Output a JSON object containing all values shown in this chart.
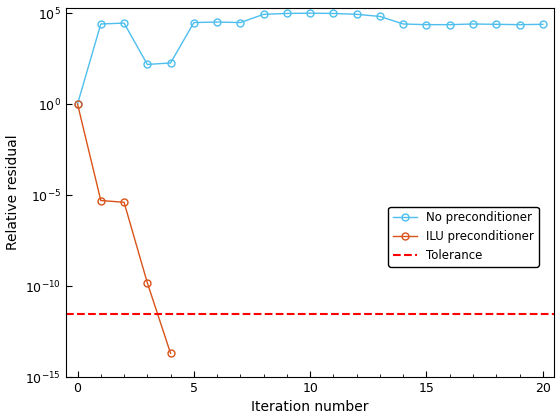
{
  "title": "",
  "xlabel": "Iteration number",
  "ylabel": "Relative residual",
  "xlim": [
    -0.5,
    20.5
  ],
  "ylim": [
    1e-15,
    200000.0
  ],
  "tolerance": 3e-12,
  "blue_x": [
    0,
    1,
    2,
    3,
    4,
    5,
    6,
    7,
    8,
    9,
    10,
    11,
    12,
    13,
    14,
    15,
    16,
    17,
    18,
    19,
    20
  ],
  "blue_y": [
    1.0,
    25000.0,
    28000.0,
    150.0,
    180.0,
    30000.0,
    32000.0,
    30000.0,
    85000.0,
    95000.0,
    98000.0,
    95000.0,
    85000.0,
    65000.0,
    25000.0,
    23000.0,
    23000.0,
    25000.0,
    24000.0,
    23000.0,
    24000.0
  ],
  "orange_x": [
    0,
    1,
    2,
    3,
    4
  ],
  "orange_y": [
    1.0,
    5e-06,
    4e-06,
    1.5e-10,
    2e-14
  ],
  "blue_color": "#4DBEEE",
  "orange_color": "#D95319",
  "tolerance_color": "#FF0000",
  "legend_labels": [
    "No preconditioner",
    "ILU preconditioner",
    "Tolerance"
  ],
  "xticks": [
    0,
    5,
    10,
    15,
    20
  ],
  "ytick_powers": [
    -15,
    -10,
    -5,
    0,
    5
  ]
}
